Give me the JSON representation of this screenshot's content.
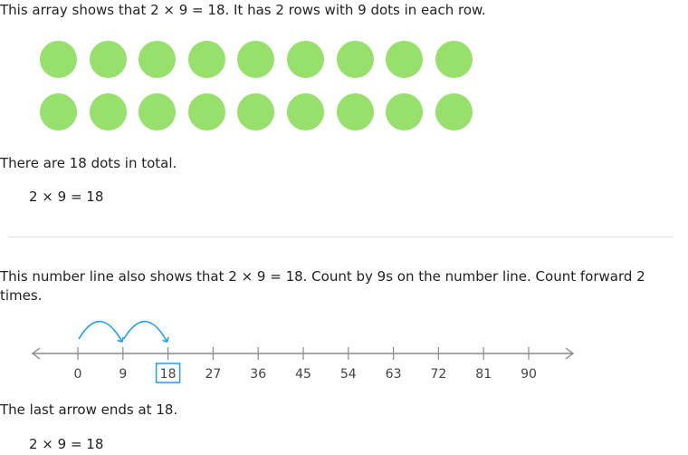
{
  "colors": {
    "dot": "#98e06c",
    "line": "#8a8a8a",
    "arrow": "#1f9ff0",
    "highlight_box": "#1f9ff0",
    "text": "#222222"
  },
  "array_section": {
    "intro": "This array shows that 2 × 9 = 18. It has 2 rows with 9 dots in each row.",
    "rows": 2,
    "dots_per_row": 9,
    "total_text": "There are 18 dots in total.",
    "equation": "2 × 9 = 18"
  },
  "numberline_section": {
    "intro": "This number line also shows that 2 × 9 = 18. Count by 9s on the number line. Count forward 2 times.",
    "ticks": [
      "0",
      "9",
      "18",
      "27",
      "36",
      "45",
      "54",
      "63",
      "72",
      "81",
      "90"
    ],
    "highlighted_tick": "18",
    "jumps": [
      [
        0,
        9
      ],
      [
        9,
        18
      ]
    ],
    "result_text": "The last arrow ends at 18.",
    "equation": "2 × 9 = 18"
  }
}
